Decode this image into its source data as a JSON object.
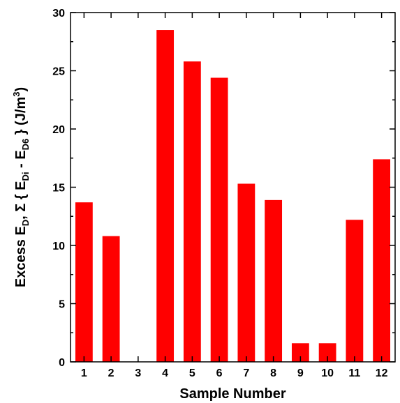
{
  "chart_data": {
    "type": "bar",
    "categories": [
      "1",
      "2",
      "3",
      "4",
      "5",
      "6",
      "7",
      "8",
      "9",
      "10",
      "11",
      "12"
    ],
    "values": [
      13.7,
      10.8,
      0,
      28.5,
      25.8,
      24.4,
      15.3,
      13.9,
      1.6,
      1.6,
      12.2,
      17.4
    ],
    "xlabel": "Sample Number",
    "ylabel": "Excess E_D, Σ { E_Di - E_D6 } (J/m^3)",
    "ylim": [
      0,
      30
    ],
    "yticks": [
      0,
      5,
      10,
      15,
      20,
      25,
      30
    ],
    "bar_color": "#ff0000",
    "grid": false
  }
}
